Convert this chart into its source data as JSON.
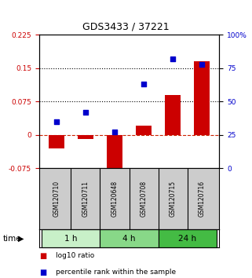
{
  "title": "GDS3433 / 37221",
  "samples": [
    "GSM120710",
    "GSM120711",
    "GSM120648",
    "GSM120708",
    "GSM120715",
    "GSM120716"
  ],
  "log10_ratio": [
    -0.03,
    -0.01,
    -0.09,
    0.02,
    0.09,
    0.165
  ],
  "percentile_rank": [
    35,
    42,
    27,
    63,
    82,
    78
  ],
  "group_boundaries": [
    [
      -0.5,
      1.5,
      "1 h",
      "#c8f0c8"
    ],
    [
      1.5,
      3.5,
      "4 h",
      "#88d888"
    ],
    [
      3.5,
      5.5,
      "24 h",
      "#44bb44"
    ]
  ],
  "ylim_left": [
    -0.075,
    0.225
  ],
  "ylim_right": [
    0,
    100
  ],
  "yticks_left": [
    -0.075,
    0,
    0.075,
    0.15,
    0.225
  ],
  "ytick_labels_left": [
    "-0.075",
    "0",
    "0.075",
    "0.15",
    "0.225"
  ],
  "yticks_right": [
    0,
    25,
    50,
    75,
    100
  ],
  "ytick_labels_right": [
    "0",
    "25",
    "50",
    "75",
    "100%"
  ],
  "hlines": [
    0.075,
    0.15
  ],
  "bar_color": "#cc0000",
  "dot_color": "#0000cc",
  "zero_line_color": "#cc2200",
  "bar_width": 0.55,
  "background_color": "#ffffff",
  "sample_box_color": "#cccccc",
  "time_label": "time",
  "legend_items": [
    {
      "color": "#cc0000",
      "label": "log10 ratio"
    },
    {
      "color": "#0000cc",
      "label": "percentile rank within the sample"
    }
  ]
}
